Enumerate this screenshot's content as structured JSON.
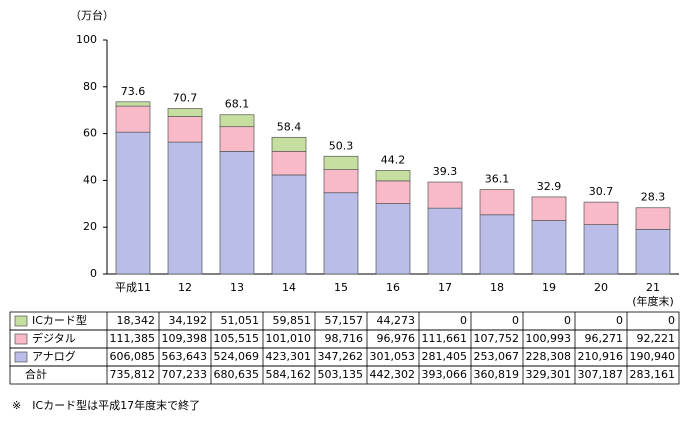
{
  "chart_data": {
    "type": "bar",
    "unit_label": "（万台）",
    "x_note": "(年度末)",
    "categories": [
      "平成11",
      "12",
      "13",
      "14",
      "15",
      "16",
      "17",
      "18",
      "19",
      "20",
      "21"
    ],
    "series": [
      {
        "name": "ICカード型",
        "color": "#c6dfa0",
        "values": [
          1.8342,
          3.4192,
          5.1051,
          5.9851,
          5.7157,
          4.4273,
          0,
          0,
          0,
          0,
          0
        ],
        "value_labels": [
          "18,342",
          "34,192",
          "51,051",
          "59,851",
          "57,157",
          "44,273",
          "0",
          "0",
          "0",
          "0",
          "0"
        ]
      },
      {
        "name": "デジタル",
        "color": "#f8b9c9",
        "values": [
          11.1385,
          10.9398,
          10.5515,
          10.101,
          9.8716,
          9.6976,
          11.1661,
          10.7752,
          10.0993,
          9.6271,
          9.2221
        ],
        "value_labels": [
          "111,385",
          "109,398",
          "105,515",
          "101,010",
          "98,716",
          "96,976",
          "111,661",
          "107,752",
          "100,993",
          "96,271",
          "92,221"
        ]
      },
      {
        "name": "アナログ",
        "color": "#b9bde8",
        "values": [
          60.6085,
          56.3643,
          52.4069,
          42.3301,
          34.7262,
          30.1053,
          28.1405,
          25.3067,
          22.8308,
          21.0916,
          19.094
        ],
        "value_labels": [
          "606,085",
          "563,643",
          "524,069",
          "423,301",
          "347,262",
          "301,053",
          "281,405",
          "253,067",
          "228,308",
          "210,916",
          "190,940"
        ]
      }
    ],
    "total": {
      "name": "合計",
      "values": [
        73.5812,
        70.7233,
        68.0635,
        58.4162,
        50.3135,
        44.2302,
        39.3066,
        36.0819,
        32.9301,
        30.7187,
        28.3161
      ],
      "value_labels": [
        "735,812",
        "707,233",
        "680,635",
        "584,162",
        "503,135",
        "442,302",
        "393,066",
        "360,819",
        "329,301",
        "307,187",
        "283,161"
      ]
    },
    "top_labels": [
      73.6,
      70.7,
      68.1,
      58.4,
      50.3,
      44.2,
      39.3,
      36.1,
      32.9,
      30.7,
      28.3
    ],
    "ylim": [
      0,
      100
    ],
    "yticks": [
      0,
      20,
      40,
      60,
      80,
      100
    ],
    "footnote": "※　ICカード型は平成17年度末で終了"
  }
}
